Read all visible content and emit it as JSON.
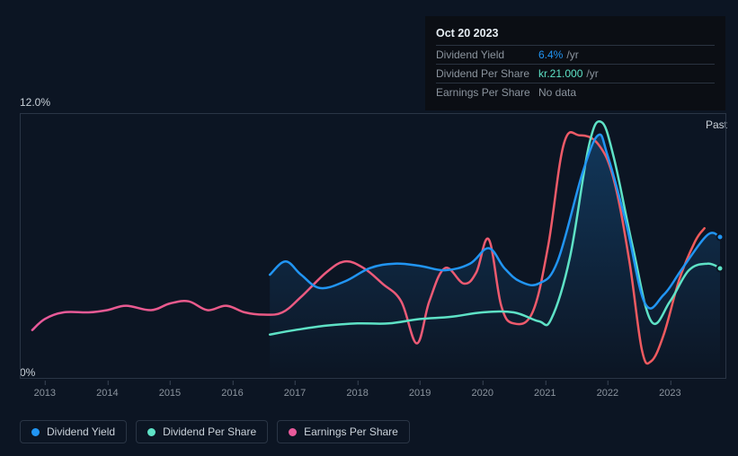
{
  "chart": {
    "type": "line",
    "background_color": "#0c1523",
    "plot_border_color": "#2a3545",
    "x": {
      "min": 2012.6,
      "max": 2023.9,
      "ticks": [
        2013,
        2014,
        2015,
        2016,
        2017,
        2018,
        2019,
        2020,
        2021,
        2022,
        2023
      ],
      "tick_labels": [
        "2013",
        "2014",
        "2015",
        "2016",
        "2017",
        "2018",
        "2019",
        "2020",
        "2021",
        "2022",
        "2023"
      ],
      "label_fontsize": 11,
      "label_color": "#8b949e"
    },
    "y": {
      "min": 0,
      "max": 12.0,
      "tick_labels": [
        "0%",
        "12.0%"
      ],
      "label_fontsize": 12,
      "label_color": "#c9d1d9"
    },
    "past_label": "Past",
    "area_fill": {
      "series_index": 0,
      "x_start": 2016.6,
      "gradient_top": "#2195f344",
      "gradient_bottom": "#2195f300"
    },
    "end_markers": [
      {
        "series_index": 0,
        "marker_color": "#2195f3"
      },
      {
        "series_index": 1,
        "marker_color": "#5ee2c6"
      }
    ],
    "series": [
      {
        "name": "Dividend Yield",
        "color": "#2195f3",
        "line_width": 2.5,
        "points": [
          [
            2016.6,
            4.7
          ],
          [
            2016.85,
            5.3
          ],
          [
            2017.1,
            4.7
          ],
          [
            2017.4,
            4.1
          ],
          [
            2017.8,
            4.4
          ],
          [
            2018.2,
            5.0
          ],
          [
            2018.6,
            5.2
          ],
          [
            2019.0,
            5.1
          ],
          [
            2019.4,
            4.9
          ],
          [
            2019.8,
            5.2
          ],
          [
            2020.1,
            5.9
          ],
          [
            2020.35,
            5.0
          ],
          [
            2020.6,
            4.4
          ],
          [
            2020.9,
            4.3
          ],
          [
            2021.2,
            5.3
          ],
          [
            2021.6,
            9.3
          ],
          [
            2021.85,
            11.0
          ],
          [
            2022.0,
            10.1
          ],
          [
            2022.3,
            7.0
          ],
          [
            2022.6,
            3.4
          ],
          [
            2022.9,
            3.8
          ],
          [
            2023.2,
            5.0
          ],
          [
            2023.6,
            6.5
          ],
          [
            2023.8,
            6.4
          ]
        ]
      },
      {
        "name": "Dividend Per Share",
        "color": "#5ee2c6",
        "line_width": 2.5,
        "points": [
          [
            2016.6,
            2.0
          ],
          [
            2017.0,
            2.2
          ],
          [
            2017.5,
            2.4
          ],
          [
            2018.0,
            2.5
          ],
          [
            2018.5,
            2.5
          ],
          [
            2019.0,
            2.7
          ],
          [
            2019.5,
            2.8
          ],
          [
            2020.0,
            3.0
          ],
          [
            2020.5,
            3.0
          ],
          [
            2020.9,
            2.6
          ],
          [
            2021.1,
            2.7
          ],
          [
            2021.4,
            5.5
          ],
          [
            2021.7,
            10.5
          ],
          [
            2021.9,
            11.6
          ],
          [
            2022.1,
            10.0
          ],
          [
            2022.4,
            6.0
          ],
          [
            2022.7,
            2.6
          ],
          [
            2023.0,
            3.5
          ],
          [
            2023.3,
            4.9
          ],
          [
            2023.6,
            5.2
          ],
          [
            2023.8,
            5.0
          ]
        ]
      },
      {
        "name": "Earnings Per Share",
        "color": "#e85a9b",
        "line_width": 2.5,
        "gradient_to": "#f05a5a",
        "points": [
          [
            2012.8,
            2.2
          ],
          [
            2013.0,
            2.7
          ],
          [
            2013.3,
            3.0
          ],
          [
            2013.7,
            3.0
          ],
          [
            2014.0,
            3.1
          ],
          [
            2014.3,
            3.3
          ],
          [
            2014.7,
            3.1
          ],
          [
            2015.0,
            3.4
          ],
          [
            2015.3,
            3.5
          ],
          [
            2015.6,
            3.1
          ],
          [
            2015.9,
            3.3
          ],
          [
            2016.2,
            3.0
          ],
          [
            2016.5,
            2.9
          ],
          [
            2016.8,
            3.0
          ],
          [
            2017.1,
            3.7
          ],
          [
            2017.5,
            4.8
          ],
          [
            2017.8,
            5.3
          ],
          [
            2018.1,
            5.0
          ],
          [
            2018.4,
            4.3
          ],
          [
            2018.7,
            3.5
          ],
          [
            2018.95,
            1.6
          ],
          [
            2019.15,
            3.5
          ],
          [
            2019.4,
            5.0
          ],
          [
            2019.7,
            4.3
          ],
          [
            2019.9,
            4.8
          ],
          [
            2020.1,
            6.3
          ],
          [
            2020.3,
            3.3
          ],
          [
            2020.5,
            2.5
          ],
          [
            2020.8,
            3.0
          ],
          [
            2021.05,
            6.0
          ],
          [
            2021.3,
            10.6
          ],
          [
            2021.55,
            11.0
          ],
          [
            2021.85,
            10.6
          ],
          [
            2022.1,
            9.0
          ],
          [
            2022.35,
            5.3
          ],
          [
            2022.55,
            1.3
          ],
          [
            2022.7,
            0.8
          ],
          [
            2022.9,
            2.0
          ],
          [
            2023.15,
            4.5
          ],
          [
            2023.4,
            6.2
          ],
          [
            2023.55,
            6.8
          ]
        ]
      }
    ]
  },
  "legend": {
    "items": [
      {
        "label": "Dividend Yield",
        "color": "#2195f3"
      },
      {
        "label": "Dividend Per Share",
        "color": "#5ee2c6"
      },
      {
        "label": "Earnings Per Share",
        "color": "#e85a9b"
      }
    ],
    "border_color": "#2a3545",
    "text_color": "#c9d1d9",
    "fontsize": 12
  },
  "tooltip": {
    "date": "Oct 20 2023",
    "background_color": "#0b0e14",
    "divider_color": "#2a3340",
    "rows": [
      {
        "key": "Dividend Yield",
        "value": "6.4%",
        "value_color": "#2195f3",
        "suffix": "/yr"
      },
      {
        "key": "Dividend Per Share",
        "value": "kr.21.000",
        "value_color": "#5ee2c6",
        "suffix": "/yr"
      },
      {
        "key": "Earnings Per Share",
        "value": "No data",
        "value_color": "#8b949e",
        "suffix": ""
      }
    ]
  }
}
